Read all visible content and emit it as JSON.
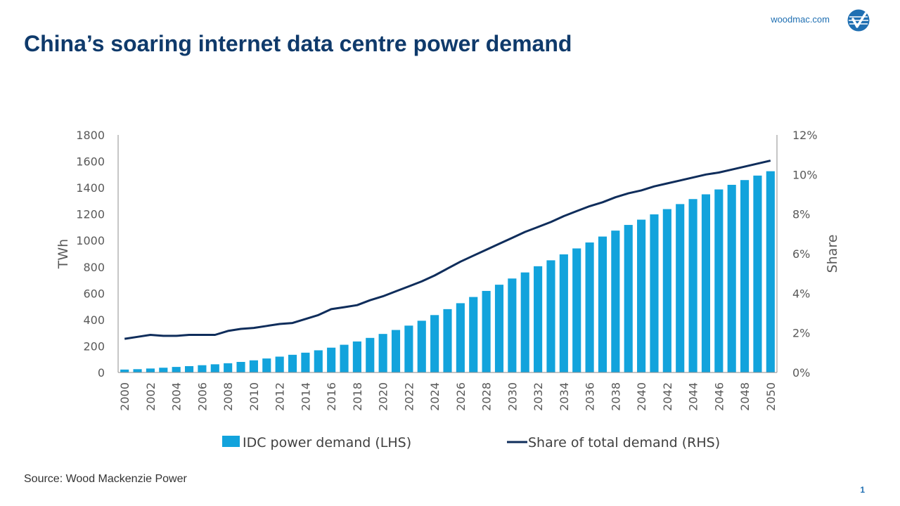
{
  "header": {
    "brand_url": "woodmac.com",
    "title": "China’s soaring internet data centre power demand"
  },
  "footer": {
    "source": "Source: Wood Mackenzie Power",
    "page_number": "1"
  },
  "colors": {
    "bar": "#12a3dc",
    "line": "#0f2d5b",
    "title": "#0f3a6b",
    "accent": "#1f6fb2"
  },
  "chart_data": {
    "type": "bar",
    "title": "",
    "xlabel": "",
    "ylabel": "TWh",
    "y2label": "Share",
    "ylim": [
      0,
      1800
    ],
    "y2lim": [
      0,
      12
    ],
    "yticks": [
      "0",
      "200",
      "400",
      "600",
      "800",
      "1000",
      "1200",
      "1400",
      "1600",
      "1800"
    ],
    "y2ticks": [
      "0%",
      "2%",
      "4%",
      "6%",
      "8%",
      "10%",
      "12%"
    ],
    "x": [
      2000,
      2001,
      2002,
      2003,
      2004,
      2005,
      2006,
      2007,
      2008,
      2009,
      2010,
      2011,
      2012,
      2013,
      2014,
      2015,
      2016,
      2017,
      2018,
      2019,
      2020,
      2021,
      2022,
      2023,
      2024,
      2025,
      2026,
      2027,
      2028,
      2029,
      2030,
      2031,
      2032,
      2033,
      2034,
      2035,
      2036,
      2037,
      2038,
      2039,
      2040,
      2041,
      2042,
      2043,
      2044,
      2045,
      2046,
      2047,
      2048,
      2049,
      2050
    ],
    "xtick_labels": [
      "2000",
      "2002",
      "2004",
      "2006",
      "2008",
      "2010",
      "2012",
      "2014",
      "2016",
      "2018",
      "2020",
      "2022",
      "2024",
      "2026",
      "2028",
      "2030",
      "2032",
      "2034",
      "2036",
      "2038",
      "2040",
      "2042",
      "2044",
      "2046",
      "2048",
      "2050"
    ],
    "legend_position": "bottom",
    "grid": false,
    "series": [
      {
        "name": "IDC power demand (LHS)",
        "type": "bar",
        "axis": "left",
        "values": [
          22,
          25,
          30,
          36,
          42,
          48,
          55,
          62,
          70,
          80,
          92,
          106,
          120,
          134,
          150,
          168,
          188,
          210,
          235,
          262,
          292,
          322,
          355,
          392,
          435,
          480,
          525,
          572,
          618,
          665,
          712,
          758,
          805,
          850,
          895,
          940,
          985,
          1030,
          1075,
          1118,
          1158,
          1198,
          1238,
          1276,
          1314,
          1350,
          1387,
          1422,
          1458,
          1492,
          1525
        ]
      },
      {
        "name": "Share of total demand (RHS)",
        "type": "line",
        "axis": "right",
        "values": [
          1.7,
          1.8,
          1.9,
          1.85,
          1.85,
          1.9,
          1.9,
          1.9,
          2.1,
          2.2,
          2.25,
          2.35,
          2.45,
          2.5,
          2.7,
          2.9,
          3.2,
          3.3,
          3.4,
          3.65,
          3.85,
          4.1,
          4.35,
          4.6,
          4.9,
          5.25,
          5.6,
          5.9,
          6.2,
          6.5,
          6.8,
          7.1,
          7.35,
          7.6,
          7.9,
          8.15,
          8.4,
          8.6,
          8.85,
          9.05,
          9.2,
          9.4,
          9.55,
          9.7,
          9.85,
          10.0,
          10.1,
          10.25,
          10.4,
          10.55,
          10.7
        ]
      }
    ]
  }
}
